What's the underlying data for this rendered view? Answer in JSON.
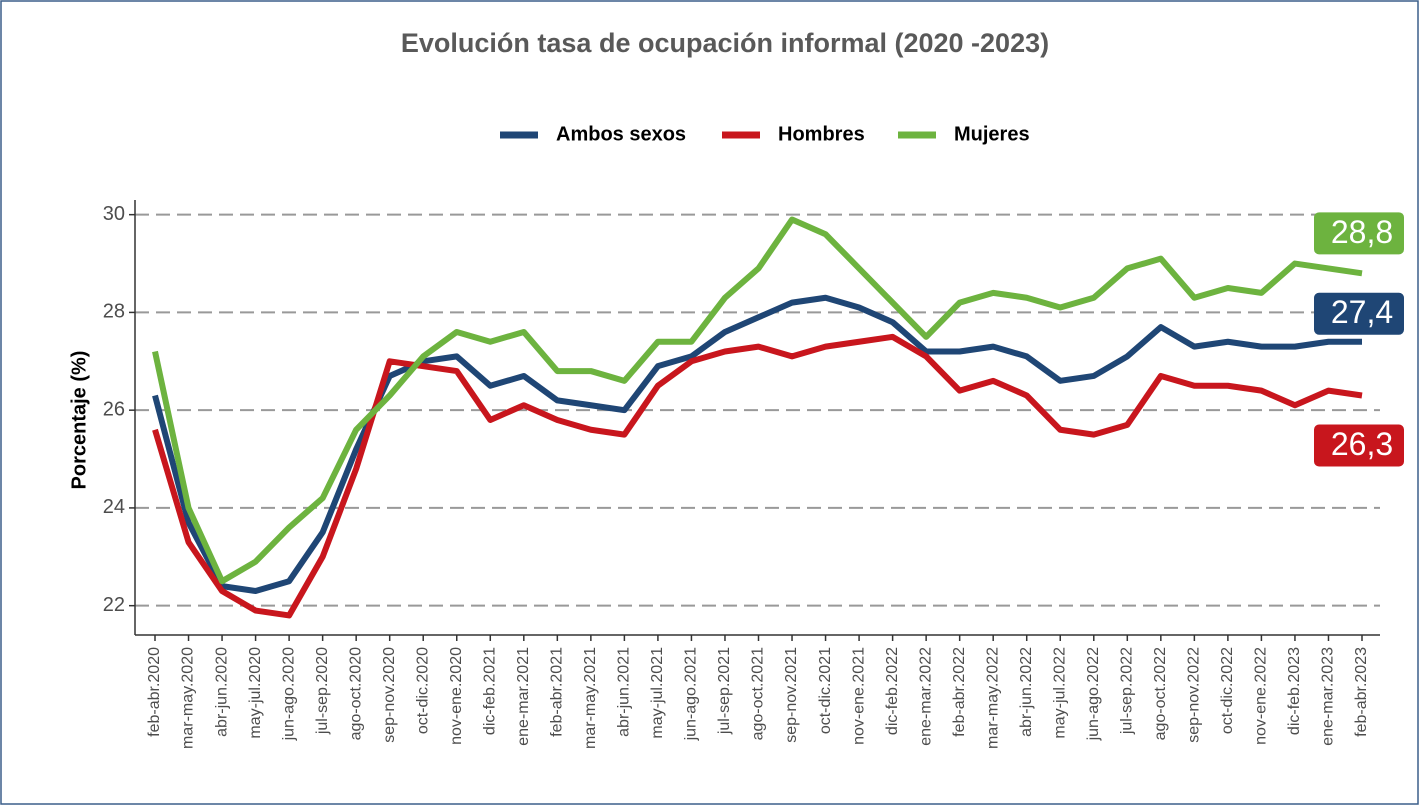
{
  "chart_data": {
    "type": "line",
    "title": "Evolución tasa de ocupación informal (2020 -2023)",
    "y_label": "Porcentaje (%)",
    "categories": [
      "feb-abr.2020",
      "mar-may.2020",
      "abr-jun.2020",
      "may-jul.2020",
      "jun-ago.2020",
      "jul-sep.2020",
      "ago-oct.2020",
      "sep-nov.2020",
      "oct-dic.2020",
      "nov-ene.2020",
      "dic-feb.2021",
      "ene-mar.2021",
      "feb-abr.2021",
      "mar-may.2021",
      "abr-jun.2021",
      "may-jul.2021",
      "jun-ago.2021",
      "jul-sep.2021",
      "ago-oct.2021",
      "sep-nov.2021",
      "oct-dic.2021",
      "nov-ene.2021",
      "dic-feb.2022",
      "ene-mar.2022",
      "feb-abr.2022",
      "mar-may.2022",
      "abr-jun.2022",
      "may-jul.2022",
      "jun-ago.2022",
      "jul-sep.2022",
      "ago-oct.2022",
      "sep-nov.2022",
      "oct-dic.2022",
      "nov-ene.2022",
      "dic-feb.2023",
      "ene-mar.2023",
      "feb-abr.2023"
    ],
    "series": [
      {
        "name": "Ambos sexos",
        "color": "#1f4675",
        "values": [
          26.3,
          23.7,
          22.4,
          22.3,
          22.5,
          23.5,
          25.2,
          26.7,
          27.0,
          27.1,
          26.5,
          26.7,
          26.2,
          26.1,
          26.0,
          26.9,
          27.1,
          27.6,
          27.9,
          28.2,
          28.3,
          28.1,
          27.8,
          27.2,
          27.2,
          27.3,
          27.1,
          26.6,
          26.7,
          27.1,
          27.7,
          27.3,
          27.4,
          27.3,
          27.3,
          27.4,
          27.4
        ],
        "value_labels": [
          null,
          null,
          null,
          null,
          null,
          null,
          null,
          null,
          null,
          null,
          null,
          null,
          null,
          null,
          null,
          null,
          null,
          null,
          null,
          null,
          null,
          null,
          null,
          null,
          null,
          null,
          null,
          null,
          null,
          null,
          null,
          null,
          null,
          null,
          null,
          null,
          "27,4"
        ]
      },
      {
        "name": "Hombres",
        "color": "#c8161d",
        "values": [
          25.6,
          23.3,
          22.3,
          21.9,
          21.8,
          23.0,
          24.8,
          27.0,
          26.9,
          26.8,
          25.8,
          26.1,
          25.8,
          25.6,
          25.5,
          26.5,
          27.0,
          27.2,
          27.3,
          27.1,
          27.3,
          27.4,
          27.5,
          27.1,
          26.4,
          26.6,
          26.3,
          25.6,
          25.5,
          25.7,
          26.7,
          26.5,
          26.5,
          26.4,
          26.1,
          26.4,
          26.3
        ],
        "value_labels": [
          null,
          null,
          null,
          null,
          null,
          null,
          null,
          null,
          null,
          null,
          null,
          null,
          null,
          null,
          null,
          null,
          null,
          null,
          null,
          null,
          null,
          null,
          null,
          null,
          null,
          null,
          null,
          null,
          null,
          null,
          null,
          null,
          null,
          null,
          null,
          null,
          "26,3"
        ]
      },
      {
        "name": "Mujeres",
        "color": "#6db33f",
        "values": [
          27.2,
          24.0,
          22.5,
          22.9,
          23.6,
          24.2,
          25.6,
          26.3,
          27.1,
          27.6,
          27.4,
          27.6,
          26.8,
          26.8,
          26.6,
          27.4,
          27.4,
          28.3,
          28.9,
          29.9,
          29.6,
          28.9,
          28.2,
          27.5,
          28.2,
          28.4,
          28.3,
          28.1,
          28.3,
          28.9,
          29.1,
          28.3,
          28.5,
          28.4,
          29.0,
          28.9,
          28.8
        ],
        "value_labels": [
          null,
          null,
          null,
          null,
          null,
          null,
          null,
          null,
          null,
          null,
          null,
          null,
          null,
          null,
          null,
          null,
          null,
          null,
          null,
          null,
          null,
          null,
          null,
          null,
          null,
          null,
          null,
          null,
          null,
          null,
          null,
          null,
          null,
          null,
          null,
          null,
          "28,8"
        ]
      }
    ],
    "ylim": [
      21.4,
      30.3
    ],
    "yticks": [
      22,
      24,
      26,
      28,
      30
    ],
    "grid": true,
    "legend": "top"
  }
}
